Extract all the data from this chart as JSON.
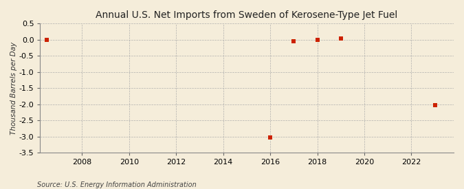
{
  "title": "Annual U.S. Net Imports from Sweden of Kerosene-Type Jet Fuel",
  "ylabel": "Thousand Barrels per Day",
  "source": "Source: U.S. Energy Information Administration",
  "background_color": "#f5edda",
  "plot_bg_color": "#f5edda",
  "data_points": [
    {
      "year": 2006.5,
      "value": 0.0
    },
    {
      "year": 2016,
      "value": -3.03
    },
    {
      "year": 2017,
      "value": -0.04
    },
    {
      "year": 2018,
      "value": -0.01
    },
    {
      "year": 2019,
      "value": 0.03
    },
    {
      "year": 2023,
      "value": -2.02
    }
  ],
  "marker_color": "#cc2200",
  "marker_size": 4,
  "xlim": [
    2006.2,
    2023.8
  ],
  "ylim": [
    -3.5,
    0.5
  ],
  "yticks": [
    0.5,
    0.0,
    -0.5,
    -1.0,
    -1.5,
    -2.0,
    -2.5,
    -3.0,
    -3.5
  ],
  "xticks": [
    2008,
    2010,
    2012,
    2014,
    2016,
    2018,
    2020,
    2022
  ],
  "grid_color": "#aaaaaa",
  "title_fontsize": 10,
  "label_fontsize": 7.5,
  "tick_fontsize": 8,
  "source_fontsize": 7
}
